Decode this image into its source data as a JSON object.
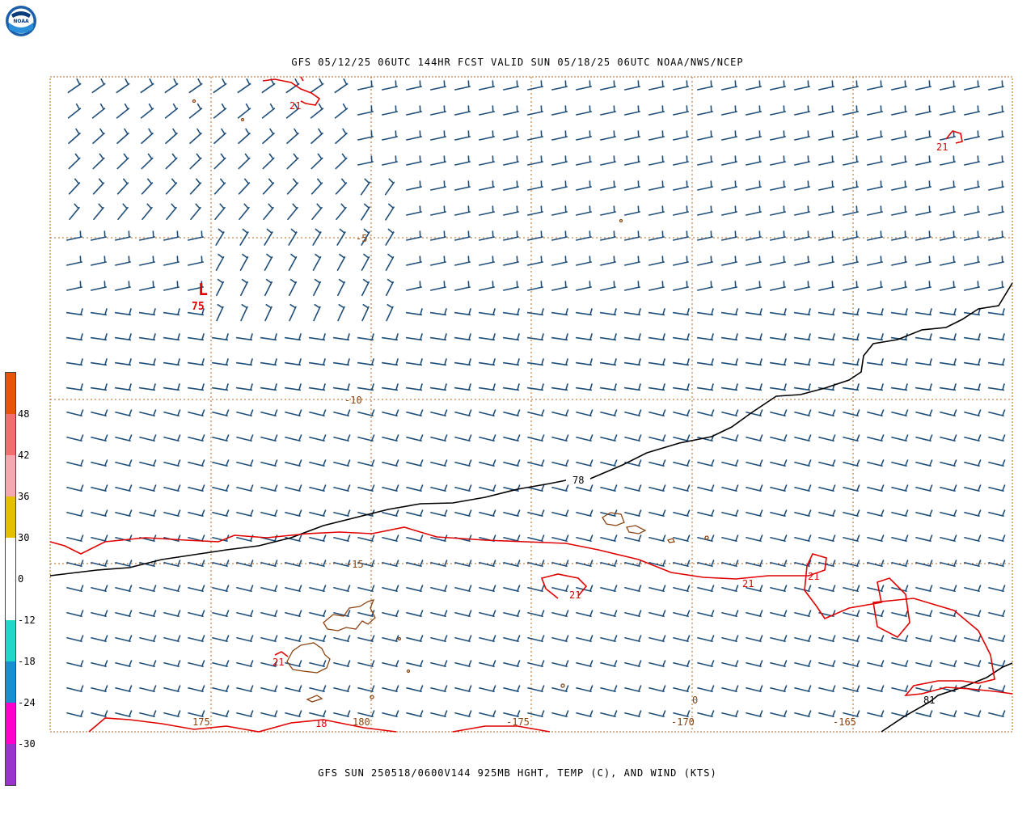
{
  "header": {
    "title": "GFS 05/12/25 06UTC 144HR FCST VALID SUN 05/18/25 06UTC NOAA/NWS/NCEP",
    "logo_text": "NOAA"
  },
  "footer": {
    "title": "GFS SUN 250518/0600V144 925MB HGHT, TEMP (C), AND WIND (KTS)"
  },
  "map": {
    "longitude_labels": [
      "175",
      "180",
      "-175",
      "-170",
      "-165"
    ],
    "latitude_labels": [
      "-5",
      "-10",
      "-15"
    ],
    "low_marker": {
      "symbol": "L",
      "value": "75"
    },
    "height_contour_labels": [
      "78",
      "81"
    ],
    "temperature_contour_labels": [
      "21",
      "21",
      "21",
      "21",
      "21",
      "21",
      "18",
      "21"
    ],
    "other_labels": [
      "0"
    ],
    "colors": {
      "grid": "#b5651d",
      "wind_barb": "#1f4e79",
      "temperature_contour": "#e00000",
      "height_contour": "#000000",
      "coastline": "#8b4513"
    }
  },
  "colorbar": {
    "labels": [
      "48",
      "42",
      "36",
      "30",
      "0",
      "-12",
      "-18",
      "-24",
      "-30"
    ],
    "colors": [
      "#e8520a",
      "#f07070",
      "#f5a8b0",
      "#e6c000",
      "#ffffff",
      "#ffffff",
      "#20d8c8",
      "#1a8fd0",
      "#ff00cc",
      "#9933cc"
    ]
  }
}
